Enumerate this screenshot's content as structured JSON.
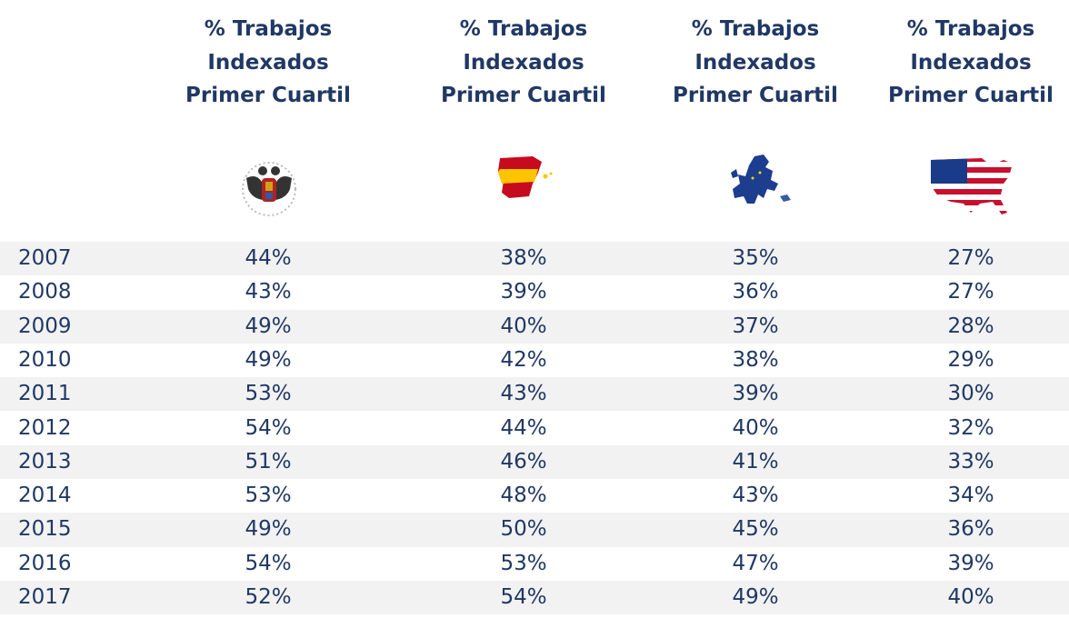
{
  "table": {
    "headers": [
      [
        "% Trabajos",
        "Indexados",
        "Primer Cuartil"
      ],
      [
        "% Trabajos",
        "Indexados",
        "Primer Cuartil"
      ],
      [
        "% Trabajos",
        "Indexados",
        "Primer Cuartil"
      ],
      [
        "% Trabajos",
        "Indexados",
        "Primer Cuartil"
      ]
    ],
    "rows": [
      [
        "2007",
        "44%",
        "38%",
        "35%",
        "27%"
      ],
      [
        "2008",
        "43%",
        "39%",
        "36%",
        "27%"
      ],
      [
        "2009",
        "49%",
        "40%",
        "37%",
        "28%"
      ],
      [
        "2010",
        "49%",
        "42%",
        "38%",
        "29%"
      ],
      [
        "2011",
        "53%",
        "43%",
        "39%",
        "30%"
      ],
      [
        "2012",
        "54%",
        "44%",
        "40%",
        "32%"
      ],
      [
        "2013",
        "51%",
        "46%",
        "41%",
        "33%"
      ],
      [
        "2014",
        "53%",
        "48%",
        "43%",
        "34%"
      ],
      [
        "2015",
        "49%",
        "50%",
        "45%",
        "36%"
      ],
      [
        "2016",
        "54%",
        "53%",
        "47%",
        "39%"
      ],
      [
        "2017",
        "52%",
        "54%",
        "49%",
        "40%"
      ]
    ]
  }
}
